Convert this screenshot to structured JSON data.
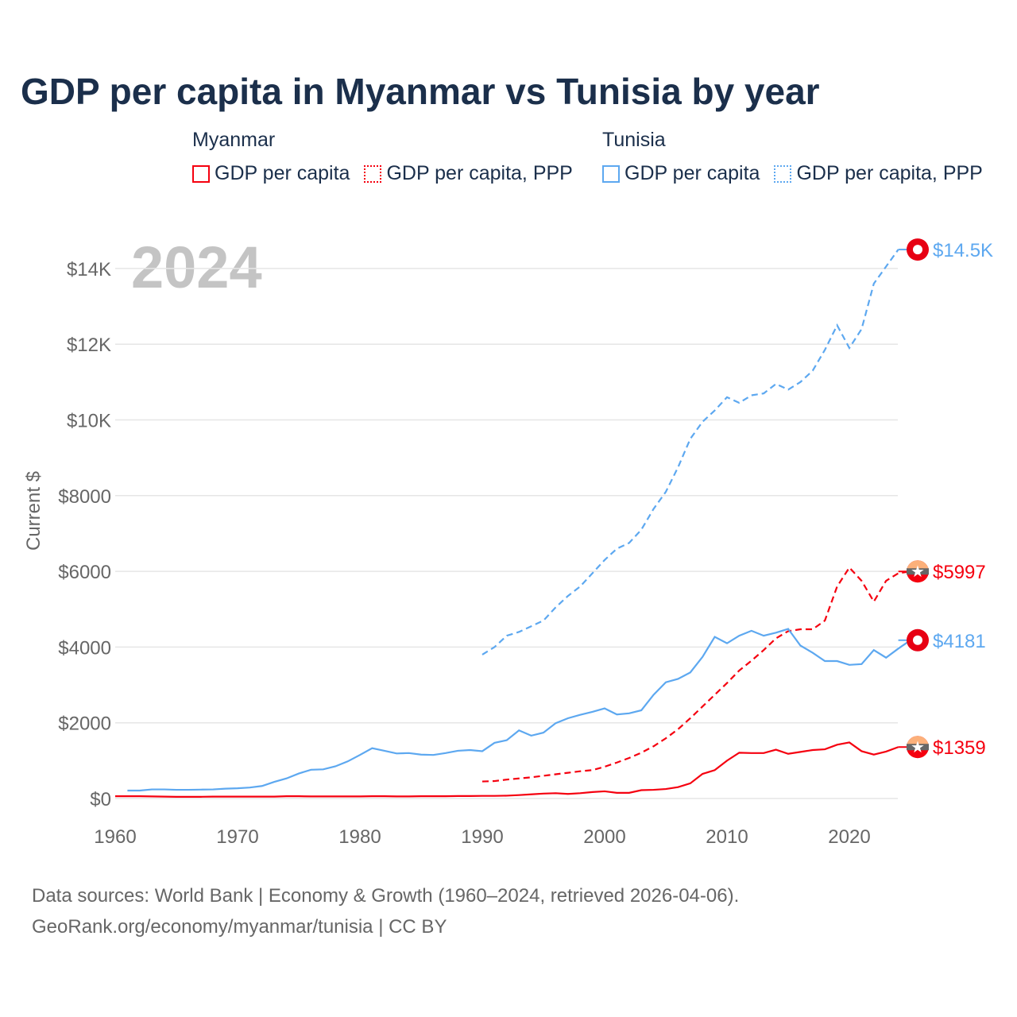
{
  "title": "GDP per capita in Myanmar vs Tunisia by year",
  "legend": {
    "groups": [
      {
        "name": "Myanmar",
        "items": [
          "GDP per capita",
          "GDP per capita, PPP"
        ],
        "color": "#f5000f"
      },
      {
        "name": "Tunisia",
        "items": [
          "GDP per capita",
          "GDP per capita, PPP"
        ],
        "color": "#5da8f0"
      }
    ]
  },
  "year_label": "2024",
  "source": [
    "Data sources: World Bank | Economy & Growth (1960–2024, retrieved 2026-04-06).",
    "GeoRank.org/economy/myanmar/tunisia | CC BY"
  ],
  "chart_data": {
    "type": "line",
    "title": "GDP per capita in Myanmar vs Tunisia by year",
    "ylabel": "Current $",
    "xlim": [
      1960,
      2024
    ],
    "ylim": [
      0,
      14500
    ],
    "xticks": [
      1960,
      1970,
      1980,
      1990,
      2000,
      2010,
      2020
    ],
    "xtick_labels": [
      "1960",
      "1970",
      "1980",
      "1990",
      "2000",
      "2010",
      "2020"
    ],
    "yticks": [
      0,
      2000,
      4000,
      6000,
      8000,
      10000,
      12000,
      14000
    ],
    "ytick_labels": [
      "$0",
      "$2000",
      "$4000",
      "$6000",
      "$8000",
      "$10K",
      "$12K",
      "$14K"
    ],
    "grid": true,
    "series": [
      {
        "name": "Myanmar GDP per capita",
        "color": "#f5000f",
        "dash": false,
        "end_label": "$1359",
        "start": 1960,
        "values": [
          60,
          60,
          60,
          55,
          50,
          45,
          45,
          45,
          50,
          50,
          50,
          50,
          50,
          50,
          60,
          60,
          55,
          55,
          55,
          55,
          55,
          60,
          60,
          55,
          55,
          60,
          60,
          60,
          65,
          65,
          70,
          70,
          75,
          90,
          110,
          130,
          140,
          120,
          140,
          170,
          190,
          150,
          150,
          220,
          230,
          250,
          300,
          400,
          650,
          750,
          1000,
          1210,
          1200,
          1200,
          1290,
          1180,
          1230,
          1280,
          1300,
          1420,
          1480,
          1250,
          1160,
          1240,
          1359
        ]
      },
      {
        "name": "Myanmar GDP per capita, PPP",
        "color": "#f5000f",
        "dash": true,
        "end_label": "$5997",
        "start": 1990,
        "values": [
          450,
          460,
          500,
          530,
          560,
          600,
          640,
          680,
          720,
          750,
          840,
          950,
          1070,
          1210,
          1380,
          1590,
          1830,
          2120,
          2430,
          2740,
          3050,
          3380,
          3640,
          3920,
          4230,
          4420,
          4470,
          4470,
          4700,
          5600,
          6100,
          5750,
          5200,
          5750,
          5950,
          5997
        ]
      },
      {
        "name": "Tunisia GDP per capita",
        "color": "#5da8f0",
        "dash": false,
        "end_label": "$4181",
        "start": 1961,
        "values": [
          210,
          210,
          240,
          240,
          230,
          230,
          235,
          240,
          260,
          270,
          290,
          330,
          440,
          530,
          660,
          760,
          770,
          850,
          980,
          1150,
          1330,
          1260,
          1190,
          1200,
          1160,
          1150,
          1200,
          1260,
          1280,
          1250,
          1470,
          1540,
          1800,
          1660,
          1740,
          1990,
          2120,
          2210,
          2290,
          2380,
          2220,
          2250,
          2330,
          2740,
          3070,
          3160,
          3330,
          3740,
          4270,
          4100,
          4300,
          4430,
          4300,
          4380,
          4480,
          4040,
          3850,
          3630,
          3630,
          3530,
          3550,
          3920,
          3720,
          3960,
          4181
        ]
      },
      {
        "name": "Tunisia GDP per capita, PPP",
        "color": "#5da8f0",
        "dash": true,
        "end_label": "$14.5K",
        "start": 1990,
        "values": [
          3800,
          4000,
          4300,
          4400,
          4550,
          4700,
          5050,
          5350,
          5600,
          5950,
          6300,
          6600,
          6750,
          7100,
          7650,
          8100,
          8750,
          9500,
          9950,
          10250,
          10600,
          10450,
          10650,
          10700,
          10950,
          10800,
          11000,
          11300,
          11850,
          12500,
          11900,
          12400,
          13600,
          14050,
          14500
        ]
      }
    ]
  }
}
